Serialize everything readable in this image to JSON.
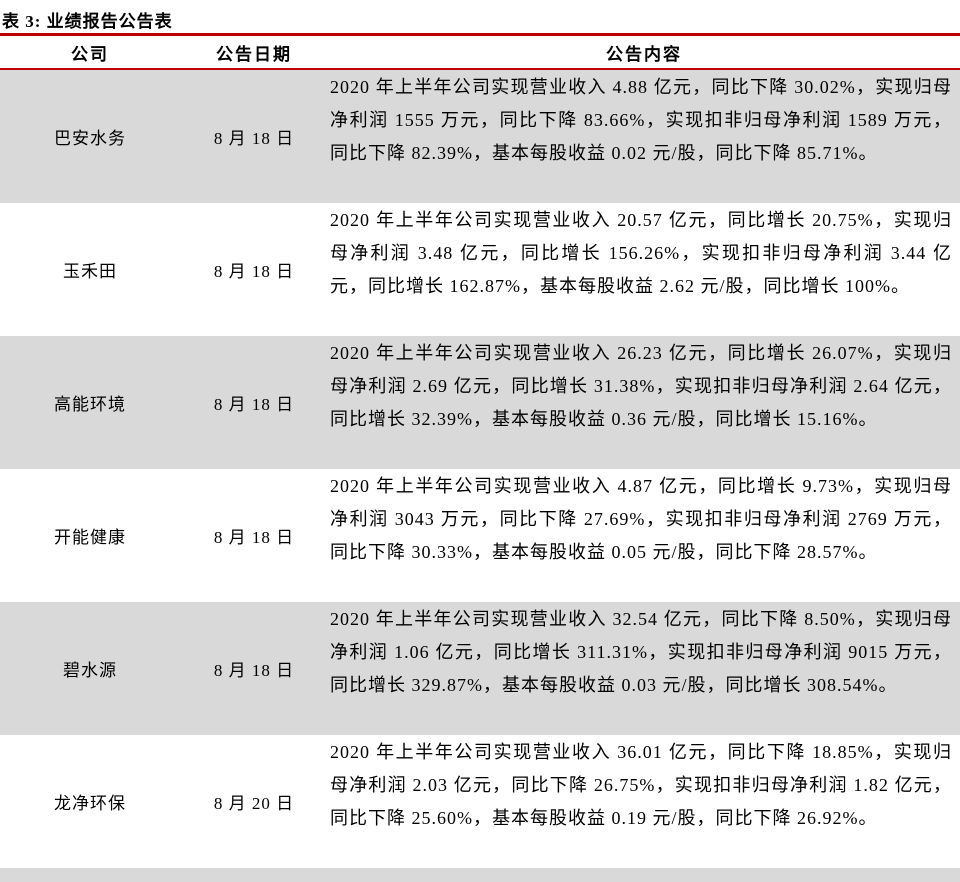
{
  "table": {
    "title": "表 3: 业绩报告公告表",
    "columns": [
      "公司",
      "公告日期",
      "公告内容"
    ],
    "rows": [
      {
        "company": "巴安水务",
        "date": "8 月 18 日",
        "content": "2020 年上半年公司实现营业收入 4.88 亿元，同比下降 30.02%，实现归母净利润 1555 万元，同比下降 83.66%，实现扣非归母净利润 1589 万元，同比下降 82.39%，基本每股收益 0.02 元/股，同比下降 85.71%。"
      },
      {
        "company": "玉禾田",
        "date": "8 月 18 日",
        "content": "2020 年上半年公司实现营业收入 20.57 亿元，同比增长 20.75%，实现归母净利润 3.48 亿元，同比增长 156.26%，实现扣非归母净利润 3.44 亿元，同比增长 162.87%，基本每股收益 2.62 元/股，同比增长 100%。"
      },
      {
        "company": "高能环境",
        "date": "8 月 18 日",
        "content": "2020 年上半年公司实现营业收入 26.23 亿元，同比增长 26.07%，实现归母净利润 2.69 亿元，同比增长 31.38%，实现扣非归母净利润 2.64 亿元，同比增长 32.39%，基本每股收益 0.36 元/股，同比增长 15.16%。"
      },
      {
        "company": "开能健康",
        "date": "8 月 18 日",
        "content": "2020 年上半年公司实现营业收入 4.87 亿元，同比增长 9.73%，实现归母净利润 3043 万元，同比下降 27.69%，实现扣非归母净利润 2769 万元，同比下降 30.33%，基本每股收益 0.05 元/股，同比下降 28.57%。"
      },
      {
        "company": "碧水源",
        "date": "8 月 18 日",
        "content": "2020 年上半年公司实现营业收入 32.54 亿元，同比下降 8.50%，实现归母净利润 1.06 亿元，同比增长 311.31%，实现扣非归母净利润 9015 万元，同比增长 329.87%，基本每股收益 0.03 元/股，同比增长 308.54%。"
      },
      {
        "company": "龙净环保",
        "date": "8 月 20 日",
        "content": "2020 年上半年公司实现营业收入 36.01 亿元，同比下降 18.85%，实现归母净利润 2.03 亿元，同比下降 26.75%，实现扣非归母净利润 1.82 亿元，同比下降 25.60%，基本每股收益 0.19 元/股，同比下降 26.92%。"
      }
    ],
    "colors": {
      "accent_red": "#c00000",
      "row_shade": "#d9d9d9",
      "text": "#000000"
    }
  }
}
